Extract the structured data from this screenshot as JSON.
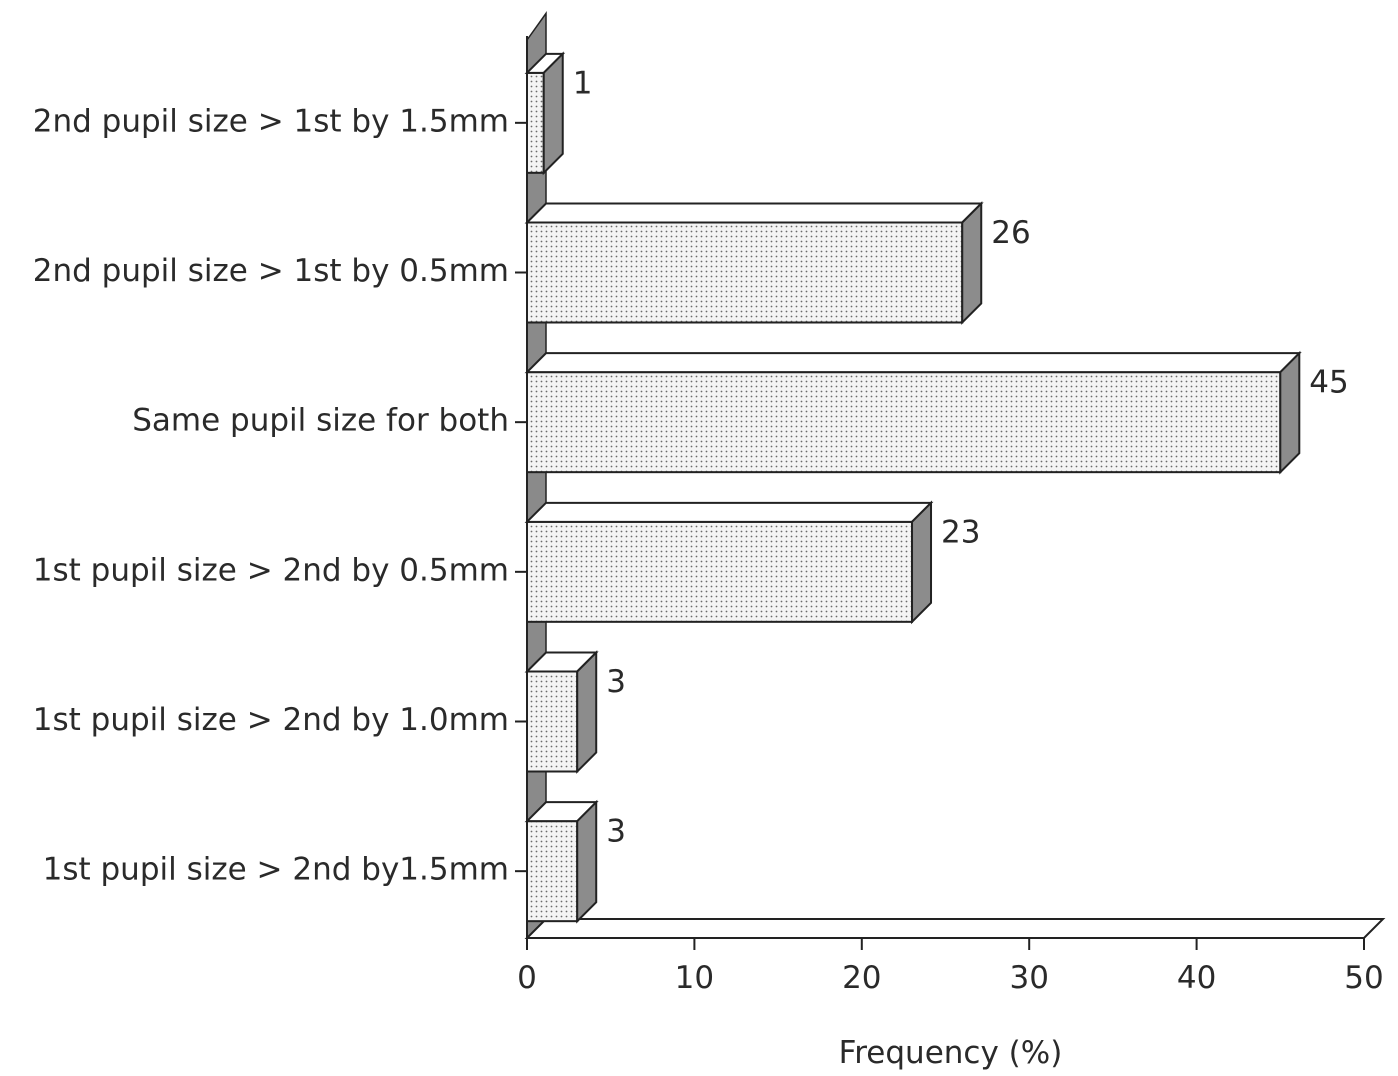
{
  "chart_data": {
    "type": "bar",
    "orientation": "horizontal",
    "style": "3d",
    "title": "",
    "xlabel": "Frequency  (%)",
    "ylabel": "",
    "categories": [
      "2nd pupil size > 1st by 1.5mm",
      "2nd pupil size > 1st by 0.5mm",
      "Same pupil size for both",
      "1st pupil size > 2nd by 0.5mm",
      "1st pupil size > 2nd by 1.0mm",
      "1st pupil size > 2nd by1.5mm"
    ],
    "values": [
      1,
      26,
      45,
      23,
      3,
      3
    ],
    "data_labels": [
      "1",
      "26",
      "45",
      "23",
      "3",
      "3"
    ],
    "xlim": [
      0,
      50
    ],
    "xticks": [
      0,
      10,
      20,
      30,
      40,
      50
    ],
    "xtick_labels": [
      "0",
      "10",
      "20",
      "30",
      "40",
      "50"
    ],
    "grid": false,
    "legend": "none",
    "colors": {
      "bar_front": "#f1f1f1",
      "bar_top": "#ffffff",
      "bar_side": "#8c8c8c",
      "outline": "#222222",
      "wall": "#8a8a8a"
    }
  }
}
